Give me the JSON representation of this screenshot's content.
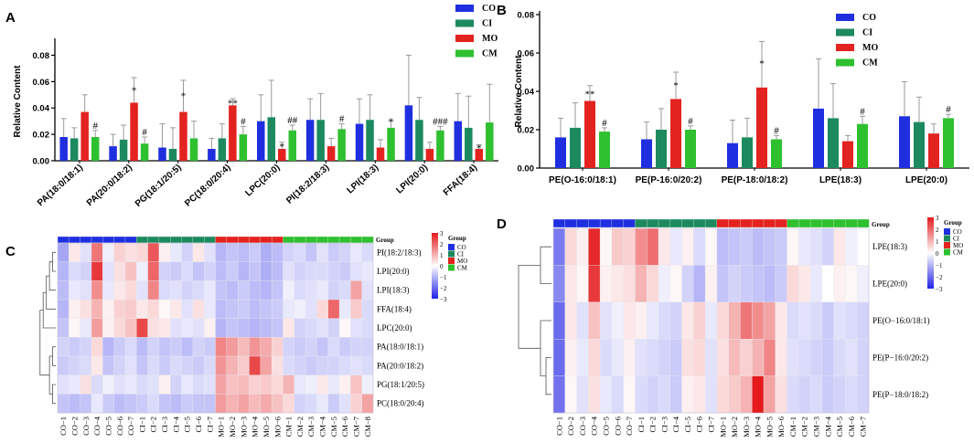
{
  "colors": {
    "CO": "#1f2fe0",
    "CI": "#1c8a5e",
    "MO": "#e3231f",
    "CM": "#2fc02f",
    "error": "#9a9a9a",
    "heat_low": "#2121e6",
    "heat_mid": "#ffffff",
    "heat_high": "#e41a1c"
  },
  "chart_data": [
    {
      "panel": "A",
      "type": "bar",
      "ylabel": "Relative Content",
      "ylim": [
        0,
        0.09
      ],
      "yticks": [
        "0.00",
        "0.02",
        "0.04",
        "0.06",
        "0.08"
      ],
      "ytick_values": [
        0,
        0.02,
        0.04,
        0.06,
        0.08
      ],
      "legend": [
        "CO",
        "CI",
        "MO",
        "CM"
      ],
      "categories": [
        "PA(18:0/18:1)",
        "PA(20:0/18:2)",
        "PG(18:1/20:5)",
        "PC(18:0/20:4)",
        "LPC(20:0)",
        "PI(18:2/18:3)",
        "LPI(18:3)",
        "LPI(20:0)",
        "FFA(18:4)"
      ],
      "series": [
        {
          "name": "CO",
          "values": [
            0.018,
            0.011,
            0.01,
            0.009,
            0.03,
            0.031,
            0.028,
            0.042,
            0.03
          ],
          "errors": [
            0.014,
            0.009,
            0.018,
            0.008,
            0.02,
            0.016,
            0.019,
            0.038,
            0.021
          ]
        },
        {
          "name": "CI",
          "values": [
            0.017,
            0.016,
            0.009,
            0.017,
            0.033,
            0.031,
            0.031,
            0.031,
            0.025
          ],
          "errors": [
            0.008,
            0.011,
            0.016,
            0.011,
            0.028,
            0.02,
            0.019,
            0.017,
            0.024
          ]
        },
        {
          "name": "MO",
          "values": [
            0.037,
            0.044,
            0.037,
            0.042,
            0.009,
            0.011,
            0.01,
            0.009,
            0.009
          ],
          "errors": [
            0.013,
            0.019,
            0.024,
            0.005,
            0.005,
            0.006,
            0.006,
            0.005,
            0.003
          ]
        },
        {
          "name": "CM",
          "values": [
            0.018,
            0.013,
            0.017,
            0.02,
            0.023,
            0.024,
            0.025,
            0.023,
            0.029
          ],
          "errors": [
            0.005,
            0.005,
            0.013,
            0.006,
            0.004,
            0.004,
            0.005,
            0.003,
            0.029
          ]
        }
      ],
      "annotations": [
        {
          "category": 0,
          "series": "CM",
          "text": "#"
        },
        {
          "category": 1,
          "series": "MO",
          "text": "*"
        },
        {
          "category": 1,
          "series": "CM",
          "text": "#"
        },
        {
          "category": 2,
          "series": "MO",
          "text": "*"
        },
        {
          "category": 3,
          "series": "MO",
          "text": "**"
        },
        {
          "category": 3,
          "series": "CM",
          "text": "#"
        },
        {
          "category": 4,
          "series": "MO",
          "text": "*"
        },
        {
          "category": 4,
          "series": "CM",
          "text": "##"
        },
        {
          "category": 5,
          "series": "CM",
          "text": "#"
        },
        {
          "category": 6,
          "series": "CM",
          "text": "*"
        },
        {
          "category": 7,
          "series": "CM",
          "text": "###"
        },
        {
          "category": 8,
          "series": "MO",
          "text": "*"
        }
      ]
    },
    {
      "panel": "B",
      "type": "bar",
      "ylabel": "Relative Content",
      "ylim": [
        0,
        0.08
      ],
      "yticks": [
        "0.00",
        "0.02",
        "0.04",
        "0.06",
        "0.08"
      ],
      "ytick_values": [
        0,
        0.02,
        0.04,
        0.06,
        0.08
      ],
      "legend": [
        "CO",
        "CI",
        "MO",
        "CM"
      ],
      "categories": [
        "PE(O-16:0/18:1)",
        "PE(P-16:0/20:2)",
        "PE(P-18:0/18:2)",
        "LPE(18:3)",
        "LPE(20:0)"
      ],
      "series": [
        {
          "name": "CO",
          "values": [
            0.016,
            0.015,
            0.013,
            0.031,
            0.027
          ],
          "errors": [
            0.01,
            0.009,
            0.012,
            0.026,
            0.018
          ]
        },
        {
          "name": "CI",
          "values": [
            0.021,
            0.02,
            0.016,
            0.026,
            0.024
          ],
          "errors": [
            0.013,
            0.011,
            0.01,
            0.018,
            0.013
          ]
        },
        {
          "name": "MO",
          "values": [
            0.035,
            0.036,
            0.042,
            0.014,
            0.018
          ],
          "errors": [
            0.008,
            0.014,
            0.024,
            0.003,
            0.005
          ]
        },
        {
          "name": "CM",
          "values": [
            0.019,
            0.02,
            0.015,
            0.023,
            0.026
          ],
          "errors": [
            0.002,
            0.002,
            0.002,
            0.004,
            0.002
          ]
        }
      ],
      "annotations": [
        {
          "category": 0,
          "series": "MO",
          "text": "**"
        },
        {
          "category": 0,
          "series": "CM",
          "text": "#"
        },
        {
          "category": 1,
          "series": "MO",
          "text": "*"
        },
        {
          "category": 1,
          "series": "CM",
          "text": "#"
        },
        {
          "category": 2,
          "series": "MO",
          "text": "*"
        },
        {
          "category": 2,
          "series": "CM",
          "text": "#"
        },
        {
          "category": 3,
          "series": "CM",
          "text": "#"
        },
        {
          "category": 4,
          "series": "CM",
          "text": "#"
        }
      ]
    },
    {
      "panel": "C",
      "type": "heatmap",
      "group_label": "Group",
      "legend_title": "Group",
      "legend": [
        "CO",
        "CI",
        "MO",
        "CM"
      ],
      "scale_ticks": [
        "3",
        "2",
        "1",
        "0",
        "−1",
        "−2",
        "−3"
      ],
      "scale_values": [
        3,
        2,
        1,
        0,
        -1,
        -2,
        -3
      ],
      "rows": [
        "PI(18:2/18:3)",
        "LPI(20:0)",
        "LPI(18:3)",
        "FFA(18:4)",
        "LPC(20:0)",
        "PA(18:0/18:1)",
        "PA(20:0/18:2)",
        "PG(18:1/20:5)",
        "PC(18:0/20:4)"
      ],
      "columns": [
        "CO−1",
        "CO−2",
        "CO−3",
        "CO−4",
        "CO−5",
        "CO−6",
        "CO−7",
        "CI−1",
        "CI−2",
        "CI−3",
        "CI−4",
        "CI−5",
        "CI−6",
        "CI−7",
        "MO−1",
        "MO−2",
        "MO−3",
        "MO−4",
        "MO−5",
        "MO−6",
        "CM−1",
        "CM−2",
        "CM−3",
        "CM−4",
        "CM−5",
        "CM−6",
        "CM−7",
        "CM−8"
      ],
      "column_groups": [
        "CO",
        "CO",
        "CO",
        "CO",
        "CO",
        "CO",
        "CO",
        "CI",
        "CI",
        "CI",
        "CI",
        "CI",
        "CI",
        "CI",
        "MO",
        "MO",
        "MO",
        "MO",
        "MO",
        "MO",
        "CM",
        "CM",
        "CM",
        "CM",
        "CM",
        "CM",
        "CM",
        "CM"
      ],
      "values": [
        [
          -1.2,
          0.3,
          -0.4,
          1.8,
          -0.2,
          0.6,
          0.4,
          0.5,
          2.2,
          0.2,
          -0.3,
          -0.6,
          0.3,
          -0.4,
          -1.0,
          -0.8,
          -0.9,
          -0.7,
          -1.1,
          -0.9,
          -0.6,
          -0.5,
          -0.8,
          -0.4,
          -0.7,
          -0.6,
          -0.3,
          -0.5
        ],
        [
          -1.0,
          -0.5,
          -0.6,
          2.6,
          -0.4,
          0.4,
          0.8,
          -0.2,
          2.0,
          -0.6,
          -0.7,
          -0.5,
          -0.8,
          -0.6,
          -0.9,
          -0.7,
          -1.0,
          -0.8,
          -1.1,
          -0.9,
          -0.4,
          -0.6,
          -0.5,
          -0.5,
          -0.6,
          -0.7,
          -0.4,
          -0.3
        ],
        [
          -0.9,
          -0.3,
          -0.4,
          1.5,
          -0.3,
          0.3,
          0.5,
          -0.4,
          1.6,
          -0.5,
          -0.4,
          -0.6,
          -0.5,
          -0.3,
          -0.8,
          -0.9,
          -0.7,
          -0.9,
          -1.0,
          -0.8,
          -0.2,
          -0.5,
          -0.4,
          -0.3,
          -0.6,
          -0.5,
          1.2,
          -0.4
        ],
        [
          -1.0,
          0.2,
          0.4,
          1.0,
          0.2,
          0.6,
          0.7,
          0.3,
          0.5,
          0.1,
          0.3,
          -0.4,
          0.4,
          -0.3,
          -0.9,
          -0.8,
          -0.7,
          -0.9,
          -0.8,
          -0.7,
          -0.3,
          -0.2,
          -0.4,
          0.5,
          2.0,
          -0.3,
          0.7,
          -0.5
        ],
        [
          -0.8,
          0.1,
          -0.3,
          1.3,
          0.2,
          0.5,
          0.8,
          2.4,
          0.4,
          0.3,
          -0.4,
          -0.3,
          -0.4,
          0.2,
          -1.0,
          -0.8,
          -0.9,
          -1.0,
          -0.9,
          -0.8,
          0.3,
          -0.6,
          -0.5,
          -0.4,
          -0.6,
          0.1,
          -0.4,
          -0.5
        ],
        [
          -0.6,
          -0.7,
          -0.6,
          0.5,
          -1.0,
          -0.7,
          -0.5,
          -0.9,
          -0.6,
          -0.8,
          -0.7,
          -0.9,
          -0.6,
          -0.7,
          1.6,
          1.3,
          0.9,
          1.4,
          1.1,
          0.6,
          -0.6,
          -0.7,
          -0.6,
          -0.8,
          -0.5,
          -0.7,
          -0.6,
          -0.6
        ],
        [
          -0.7,
          -0.6,
          -0.5,
          0.3,
          -0.8,
          -0.6,
          -0.4,
          -0.8,
          -0.5,
          -0.7,
          -0.5,
          -0.6,
          -0.7,
          -0.5,
          1.4,
          1.0,
          0.7,
          2.4,
          1.2,
          0.4,
          -0.5,
          -0.6,
          -0.7,
          -0.6,
          -0.6,
          -0.5,
          -0.4,
          -0.5
        ],
        [
          -0.4,
          -0.3,
          0.4,
          -0.5,
          -0.2,
          -0.4,
          -0.3,
          -0.5,
          -0.4,
          0.2,
          -0.6,
          -0.3,
          -0.5,
          -0.4,
          1.2,
          0.8,
          0.9,
          0.6,
          0.7,
          0.5,
          1.0,
          -0.3,
          -0.2,
          0.3,
          -0.3,
          0.2,
          0.8,
          -0.2
        ],
        [
          -0.8,
          -0.9,
          -0.8,
          -0.3,
          -0.7,
          -0.9,
          -0.8,
          -0.7,
          -0.5,
          -0.8,
          -0.9,
          -0.7,
          -0.8,
          -0.8,
          1.3,
          1.0,
          1.2,
          0.9,
          1.1,
          0.8,
          0.5,
          -0.6,
          -0.5,
          -0.3,
          -0.7,
          -0.4,
          0.6,
          1.2
        ]
      ]
    },
    {
      "panel": "D",
      "type": "heatmap",
      "group_label": "Group",
      "legend_title": "Group",
      "legend": [
        "CO",
        "CI",
        "MO",
        "CM"
      ],
      "scale_ticks": [
        "3",
        "2",
        "1",
        "0",
        "−1",
        "−2",
        "−3"
      ],
      "scale_values": [
        3,
        2,
        1,
        0,
        -1,
        -2,
        -3
      ],
      "rows": [
        "LPE(18:3)",
        "LPE(20:0)",
        "PE(O−16:0/18:1)",
        "PE(P−16:0/20:2)",
        "PE(P−18:0/18:2)"
      ],
      "columns": [
        "CO−1",
        "CO−2",
        "CO−3",
        "CO−4",
        "CO−5",
        "CO−6",
        "CO−7",
        "CI−1",
        "CI−2",
        "CI−3",
        "CI−4",
        "CI−5",
        "CI−6",
        "CI−7",
        "MO−1",
        "MO−2",
        "MO−3",
        "MO−4",
        "MO−5",
        "MO−6",
        "CM−1",
        "CM−2",
        "CM−3",
        "CM−4",
        "CM−5",
        "CM−6",
        "CM−7"
      ],
      "column_groups": [
        "CO",
        "CO",
        "CO",
        "CO",
        "CO",
        "CO",
        "CO",
        "CI",
        "CI",
        "CI",
        "CI",
        "CI",
        "CI",
        "CI",
        "MO",
        "MO",
        "MO",
        "MO",
        "MO",
        "MO",
        "CM",
        "CM",
        "CM",
        "CM",
        "CM",
        "CM",
        "CM"
      ],
      "values": [
        [
          -1.8,
          0.5,
          0.2,
          2.8,
          0.1,
          0.7,
          0.6,
          1.5,
          1.9,
          0.3,
          -0.3,
          0.2,
          -0.5,
          0.1,
          -0.9,
          -0.8,
          -0.7,
          -0.9,
          -0.8,
          -0.7,
          0.1,
          -0.3,
          -0.4,
          -0.6,
          0.3,
          -0.2,
          0.0
        ],
        [
          -1.6,
          0.3,
          0.1,
          2.6,
          0.2,
          0.3,
          0.4,
          1.0,
          0.5,
          -0.2,
          0.1,
          -0.6,
          -1.0,
          0.2,
          -0.8,
          -0.6,
          -0.7,
          -0.8,
          -0.9,
          -0.7,
          0.5,
          0.3,
          -0.3,
          0.0,
          0.2,
          0.1,
          -0.2
        ],
        [
          -2.0,
          0.3,
          -0.4,
          0.8,
          -0.4,
          -0.2,
          0.3,
          0.2,
          -0.3,
          -0.5,
          -0.6,
          0.3,
          0.6,
          -0.3,
          0.5,
          1.0,
          1.8,
          1.5,
          1.2,
          0.3,
          -0.5,
          -0.4,
          -0.5,
          -0.7,
          -0.4,
          -0.5,
          -0.6
        ],
        [
          -2.0,
          0.2,
          -0.3,
          0.5,
          -0.5,
          -0.3,
          0.2,
          -0.4,
          -0.5,
          -0.6,
          -0.7,
          0.4,
          0.5,
          -0.4,
          0.4,
          0.9,
          0.6,
          1.0,
          1.6,
          0.3,
          -0.4,
          -0.5,
          -0.6,
          -0.7,
          -0.5,
          -0.4,
          -0.6
        ],
        [
          -1.9,
          0.1,
          -0.4,
          0.4,
          -0.3,
          -0.5,
          0.1,
          -0.5,
          -0.6,
          -0.5,
          -0.7,
          0.2,
          0.3,
          -0.4,
          0.5,
          0.7,
          1.0,
          3.0,
          1.2,
          0.4,
          -0.5,
          -0.6,
          -0.5,
          -0.7,
          -0.6,
          -0.5,
          -0.6
        ]
      ]
    }
  ]
}
